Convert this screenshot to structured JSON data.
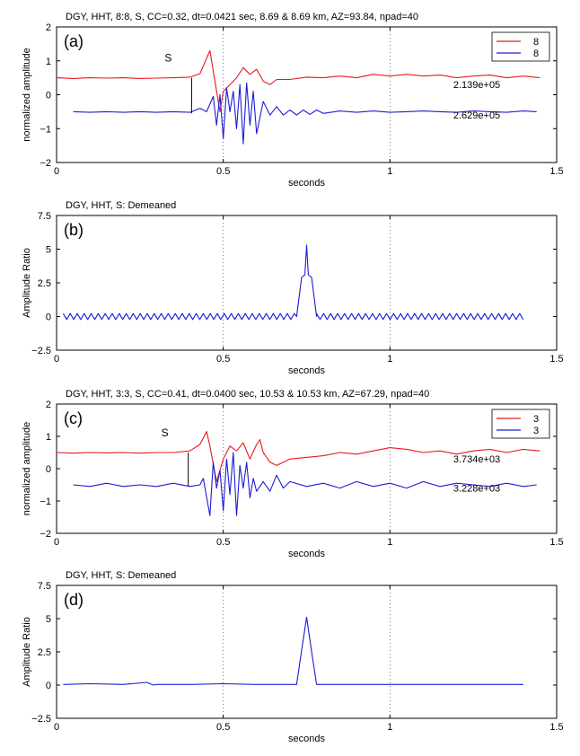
{
  "chart_data": [
    {
      "type": "line",
      "panel_label": "(a)",
      "title": "DGY, HHT, 8:8, S, CC=0.32,  dt=0.0421 sec,  8.69 & 8.69 km, AZ=93.84, npad=40",
      "xlabel": "seconds",
      "ylabel": "normalized amplitude",
      "xlim": [
        0,
        1.5
      ],
      "ylim": [
        -2,
        2
      ],
      "xticks": [
        0,
        0.5,
        1,
        1.5
      ],
      "xtick_labels": [
        "0",
        "0.5",
        "1",
        "1.5"
      ],
      "yticks": [
        -2,
        -1,
        0,
        1,
        2
      ],
      "ytick_labels": [
        "−2",
        "−1",
        "0",
        "1",
        "2"
      ],
      "grid": "vertical-dotted",
      "legend": "top-right",
      "phase_marker": {
        "label": "S",
        "x": 0.405,
        "y0": -0.55,
        "y1": 0.5
      },
      "annotations": [
        {
          "text": "2.139e+05",
          "x": 1.19,
          "y": 0.3
        },
        {
          "text": "2.629e+05",
          "x": 1.19,
          "y": -0.6
        }
      ],
      "series": [
        {
          "name": "8",
          "color": "#e8191e",
          "x": [
            0,
            0.05,
            0.1,
            0.15,
            0.2,
            0.25,
            0.3,
            0.35,
            0.4,
            0.43,
            0.46,
            0.475,
            0.49,
            0.5,
            0.52,
            0.54,
            0.56,
            0.58,
            0.6,
            0.62,
            0.64,
            0.66,
            0.7,
            0.75,
            0.8,
            0.85,
            0.9,
            0.95,
            1.0,
            1.05,
            1.1,
            1.15,
            1.2,
            1.25,
            1.3,
            1.35,
            1.4,
            1.45
          ],
          "y": [
            0.5,
            0.48,
            0.5,
            0.49,
            0.5,
            0.48,
            0.49,
            0.5,
            0.52,
            0.62,
            1.3,
            0.4,
            -0.5,
            0.1,
            0.3,
            0.5,
            0.8,
            0.6,
            0.75,
            0.4,
            0.3,
            0.45,
            0.45,
            0.52,
            0.5,
            0.55,
            0.5,
            0.6,
            0.55,
            0.6,
            0.55,
            0.58,
            0.5,
            0.55,
            0.58,
            0.5,
            0.55,
            0.5
          ]
        },
        {
          "name": "8",
          "color": "#1c1cd6",
          "x": [
            0.05,
            0.1,
            0.15,
            0.2,
            0.25,
            0.3,
            0.35,
            0.4,
            0.43,
            0.45,
            0.47,
            0.48,
            0.49,
            0.5,
            0.51,
            0.52,
            0.53,
            0.54,
            0.55,
            0.56,
            0.57,
            0.58,
            0.59,
            0.6,
            0.62,
            0.64,
            0.66,
            0.68,
            0.7,
            0.72,
            0.74,
            0.76,
            0.78,
            0.8,
            0.85,
            0.9,
            0.95,
            1.0,
            1.05,
            1.1,
            1.15,
            1.2,
            1.25,
            1.3,
            1.35,
            1.4,
            1.44
          ],
          "y": [
            -0.5,
            -0.52,
            -0.5,
            -0.52,
            -0.5,
            -0.52,
            -0.5,
            -0.52,
            -0.4,
            -0.5,
            -0.05,
            -0.9,
            0.0,
            -1.3,
            0.2,
            -0.5,
            0.1,
            -1.0,
            0.3,
            -1.45,
            0.35,
            -0.9,
            0.1,
            -1.15,
            -0.2,
            -0.6,
            -0.35,
            -0.6,
            -0.45,
            -0.6,
            -0.45,
            -0.58,
            -0.45,
            -0.55,
            -0.48,
            -0.52,
            -0.48,
            -0.52,
            -0.5,
            -0.48,
            -0.5,
            -0.52,
            -0.48,
            -0.5,
            -0.52,
            -0.48,
            -0.5
          ]
        }
      ]
    },
    {
      "type": "line",
      "panel_label": "(b)",
      "title": "DGY, HHT, S: Demeaned",
      "xlabel": "seconds",
      "ylabel": "Amplitude Ratio",
      "xlim": [
        0,
        1.5
      ],
      "ylim": [
        -2.5,
        7.5
      ],
      "xticks": [
        0,
        0.5,
        1,
        1.5
      ],
      "xtick_labels": [
        "0",
        "0.5",
        "1",
        "1.5"
      ],
      "yticks": [
        -2.5,
        0,
        2.5,
        5,
        7.5
      ],
      "ytick_labels": [
        "−2.5",
        "0",
        "2.5",
        "5",
        "7.5"
      ],
      "grid": "vertical-dotted",
      "series": [
        {
          "color": "#1c1cd6",
          "x": [
            0.02,
            0.72,
            0.735,
            0.745,
            0.75,
            0.755,
            0.765,
            0.78,
            1.4
          ],
          "y": [
            0,
            0,
            2.9,
            3.1,
            5.3,
            3.1,
            2.9,
            0,
            0
          ],
          "oscillation": {
            "amplitude": 0.22,
            "period": 0.021
          }
        }
      ]
    },
    {
      "type": "line",
      "panel_label": "(c)",
      "title": "DGY, HHT, 3:3, S, CC=0.41,  dt=0.0400 sec,  10.53 & 10.53 km, AZ=67.29, npad=40",
      "xlabel": "seconds",
      "ylabel": "normalized amplitude",
      "xlim": [
        0,
        1.5
      ],
      "ylim": [
        -2,
        2
      ],
      "xticks": [
        0,
        0.5,
        1,
        1.5
      ],
      "xtick_labels": [
        "0",
        "0.5",
        "1",
        "1.5"
      ],
      "yticks": [
        -2,
        -1,
        0,
        1,
        2
      ],
      "ytick_labels": [
        "−2",
        "−1",
        "0",
        "1",
        "2"
      ],
      "grid": "vertical-dotted",
      "legend": "top-right",
      "phase_marker": {
        "label": "S",
        "x": 0.395,
        "y0": -0.55,
        "y1": 0.5
      },
      "annotations": [
        {
          "text": "3.734e+03",
          "x": 1.19,
          "y": 0.3
        },
        {
          "text": "3.228e+03",
          "x": 1.19,
          "y": -0.6
        }
      ],
      "series": [
        {
          "name": "3",
          "color": "#e8191e",
          "x": [
            0,
            0.05,
            0.1,
            0.15,
            0.2,
            0.25,
            0.3,
            0.35,
            0.4,
            0.43,
            0.45,
            0.46,
            0.48,
            0.5,
            0.52,
            0.54,
            0.56,
            0.58,
            0.6,
            0.61,
            0.62,
            0.64,
            0.66,
            0.7,
            0.75,
            0.8,
            0.85,
            0.9,
            0.95,
            1.0,
            1.05,
            1.1,
            1.15,
            1.2,
            1.25,
            1.3,
            1.35,
            1.4,
            1.45
          ],
          "y": [
            0.5,
            0.48,
            0.5,
            0.49,
            0.5,
            0.48,
            0.5,
            0.5,
            0.55,
            0.75,
            1.15,
            0.7,
            -0.4,
            0.3,
            0.7,
            0.55,
            0.8,
            0.3,
            0.75,
            0.9,
            0.5,
            0.2,
            0.1,
            0.3,
            0.35,
            0.4,
            0.5,
            0.45,
            0.55,
            0.65,
            0.6,
            0.5,
            0.55,
            0.45,
            0.55,
            0.6,
            0.5,
            0.6,
            0.55
          ]
        },
        {
          "name": "3",
          "color": "#1c1cd6",
          "x": [
            0.05,
            0.1,
            0.15,
            0.2,
            0.25,
            0.3,
            0.35,
            0.4,
            0.43,
            0.44,
            0.46,
            0.47,
            0.48,
            0.49,
            0.5,
            0.51,
            0.52,
            0.53,
            0.54,
            0.55,
            0.56,
            0.57,
            0.58,
            0.59,
            0.6,
            0.62,
            0.64,
            0.66,
            0.68,
            0.7,
            0.75,
            0.8,
            0.85,
            0.9,
            0.95,
            1.0,
            1.05,
            1.1,
            1.15,
            1.2,
            1.25,
            1.3,
            1.35,
            1.4,
            1.44
          ],
          "y": [
            -0.5,
            -0.55,
            -0.45,
            -0.55,
            -0.5,
            -0.55,
            -0.45,
            -0.55,
            -0.5,
            -0.3,
            -1.45,
            0.2,
            -0.6,
            -0.05,
            -1.3,
            0.3,
            -0.8,
            0.5,
            -1.45,
            0.1,
            -0.6,
            0.2,
            -0.9,
            -0.3,
            -0.7,
            -0.4,
            -0.7,
            -0.2,
            -0.6,
            -0.4,
            -0.55,
            -0.45,
            -0.6,
            -0.4,
            -0.55,
            -0.45,
            -0.6,
            -0.4,
            -0.55,
            -0.45,
            -0.5,
            -0.55,
            -0.45,
            -0.55,
            -0.5
          ]
        }
      ]
    },
    {
      "type": "line",
      "panel_label": "(d)",
      "title": "DGY, HHT, S: Demeaned",
      "xlabel": "seconds",
      "ylabel": "Amplitude Ratio",
      "xlim": [
        0,
        1.5
      ],
      "ylim": [
        -2.5,
        7.5
      ],
      "xticks": [
        0,
        0.5,
        1,
        1.5
      ],
      "xtick_labels": [
        "0",
        "0.5",
        "1",
        "1.5"
      ],
      "yticks": [
        -2.5,
        0,
        2.5,
        5,
        7.5
      ],
      "ytick_labels": [
        "−2.5",
        "0",
        "2.5",
        "5",
        "7.5"
      ],
      "grid": "vertical-dotted",
      "series": [
        {
          "color": "#1c1cd6",
          "x": [
            0.02,
            0.1,
            0.2,
            0.27,
            0.29,
            0.3,
            0.4,
            0.5,
            0.6,
            0.72,
            0.735,
            0.75,
            0.765,
            0.78,
            0.9,
            1.0,
            1.1,
            1.2,
            1.3,
            1.4
          ],
          "y": [
            0.05,
            0.1,
            0.05,
            0.2,
            0.0,
            0.05,
            0.05,
            0.1,
            0.05,
            0.05,
            2.6,
            5.1,
            2.5,
            0.05,
            0.05,
            0.05,
            0.05,
            0.05,
            0.05,
            0.05
          ]
        }
      ]
    }
  ]
}
